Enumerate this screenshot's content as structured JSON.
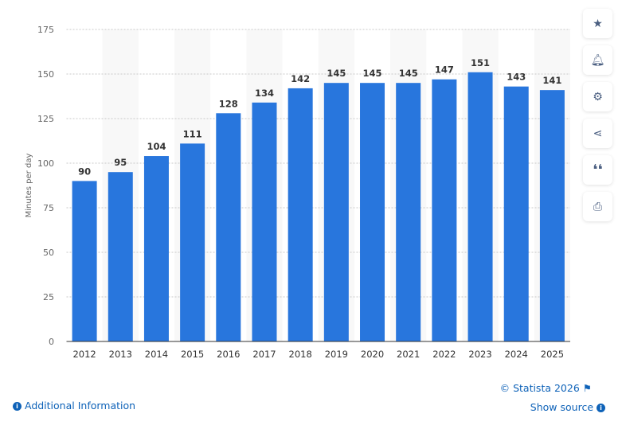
{
  "chart_data": {
    "type": "bar",
    "categories": [
      "2012",
      "2013",
      "2014",
      "2015",
      "2016",
      "2017",
      "2018",
      "2019",
      "2020",
      "2021",
      "2022",
      "2023",
      "2024",
      "2025"
    ],
    "values": [
      90,
      95,
      104,
      111,
      128,
      134,
      142,
      145,
      145,
      145,
      147,
      151,
      143,
      141
    ],
    "ylabel": "Minutes per day",
    "xlabel": "",
    "title": "",
    "ylim": [
      0,
      175
    ],
    "yticks": [
      0,
      25,
      50,
      75,
      100,
      125,
      150,
      175
    ],
    "grid": true,
    "bar_color": "#2876dd",
    "data_labels": true
  },
  "toolbar": {
    "icons": [
      "star-icon",
      "bell-icon",
      "gear-icon",
      "share-icon",
      "quote-icon",
      "print-icon"
    ]
  },
  "footer": {
    "copyright": "© Statista 2026",
    "show_source": "Show source",
    "additional_info": "Additional Information"
  }
}
